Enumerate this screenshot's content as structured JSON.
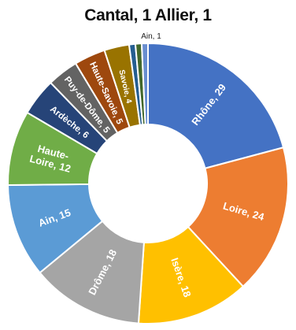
{
  "chart_data": {
    "type": "pie",
    "title": "Cantal, 1 Allier, 1",
    "top_annotation": "Ain, 1",
    "categories": [
      "Rhône",
      "Loire",
      "Isère",
      "Drôme",
      "Ain",
      "Haute-Loire",
      "Ardèche",
      "Puy-de-Dôme",
      "Haute-Savoie",
      "Savoie",
      "Allier",
      "Cantal",
      "Ain"
    ],
    "values": [
      29,
      24,
      18,
      18,
      15,
      12,
      6,
      5,
      5,
      4,
      1,
      1,
      1
    ],
    "labels": [
      "Rhône, 29",
      "Loire, 24",
      "Isère, 18",
      "Drôme, 18",
      "Ain, 15",
      [
        "Haute-",
        "Loire, 12"
      ],
      "Ardèche, 6",
      "Puy-de-Dôme, 5",
      "Haute-Savoie, 5",
      "Savoie, 4",
      "",
      "",
      ""
    ],
    "colors": [
      "#4472C4",
      "#ED7D31",
      "#FFC000",
      "#A5A5A5",
      "#5B9BD5",
      "#70AD47",
      "#264478",
      "#636363",
      "#9E480E",
      "#997300",
      "#255E91",
      "#43682B",
      "#698ED0"
    ]
  }
}
